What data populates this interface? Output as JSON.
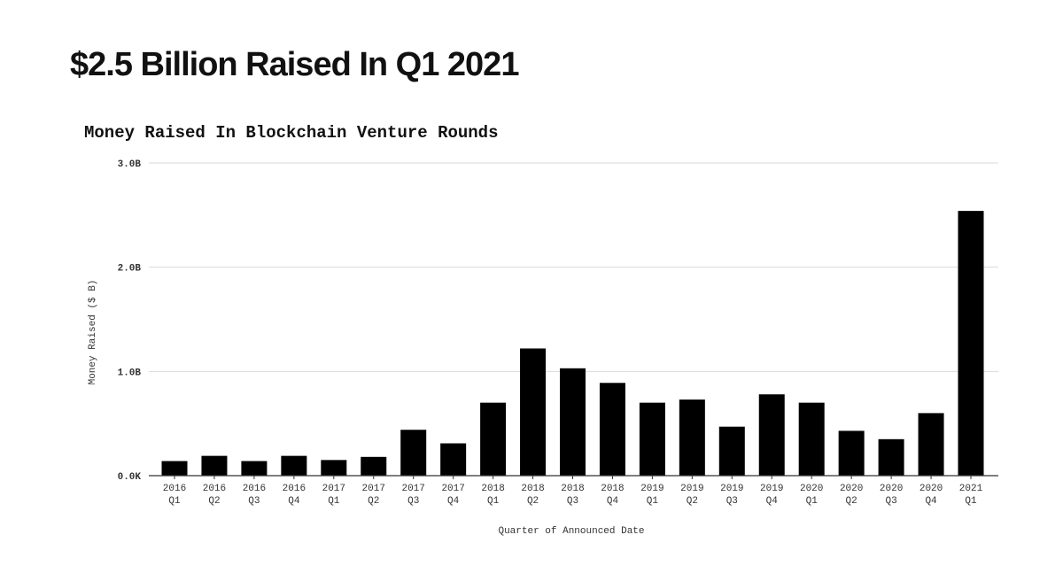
{
  "headline": "$2.5 Billion Raised In Q1 2021",
  "chart_data": {
    "type": "bar",
    "title": "Money Raised In Blockchain Venture Rounds",
    "xlabel": "Quarter of Announced Date",
    "ylabel": "Money Raised ($ B)",
    "categories": [
      [
        "2016",
        "Q1"
      ],
      [
        "2016",
        "Q2"
      ],
      [
        "2016",
        "Q3"
      ],
      [
        "2016",
        "Q4"
      ],
      [
        "2017",
        "Q1"
      ],
      [
        "2017",
        "Q2"
      ],
      [
        "2017",
        "Q3"
      ],
      [
        "2017",
        "Q4"
      ],
      [
        "2018",
        "Q1"
      ],
      [
        "2018",
        "Q2"
      ],
      [
        "2018",
        "Q3"
      ],
      [
        "2018",
        "Q4"
      ],
      [
        "2019",
        "Q1"
      ],
      [
        "2019",
        "Q2"
      ],
      [
        "2019",
        "Q3"
      ],
      [
        "2019",
        "Q4"
      ],
      [
        "2020",
        "Q1"
      ],
      [
        "2020",
        "Q2"
      ],
      [
        "2020",
        "Q3"
      ],
      [
        "2020",
        "Q4"
      ],
      [
        "2021",
        "Q1"
      ]
    ],
    "values": [
      0.14,
      0.19,
      0.14,
      0.19,
      0.15,
      0.18,
      0.44,
      0.31,
      0.7,
      1.22,
      1.03,
      0.89,
      0.7,
      0.73,
      0.47,
      0.78,
      0.7,
      0.43,
      0.35,
      0.6,
      2.54
    ],
    "yticks": [
      {
        "value": 0,
        "label": "0.0K"
      },
      {
        "value": 1,
        "label": "1.0B"
      },
      {
        "value": 2,
        "label": "2.0B"
      },
      {
        "value": 3,
        "label": "3.0B"
      }
    ],
    "ylim": [
      0,
      3
    ],
    "grid": true,
    "bar_color": "#000000",
    "grid_color": "#d9d9d9"
  }
}
